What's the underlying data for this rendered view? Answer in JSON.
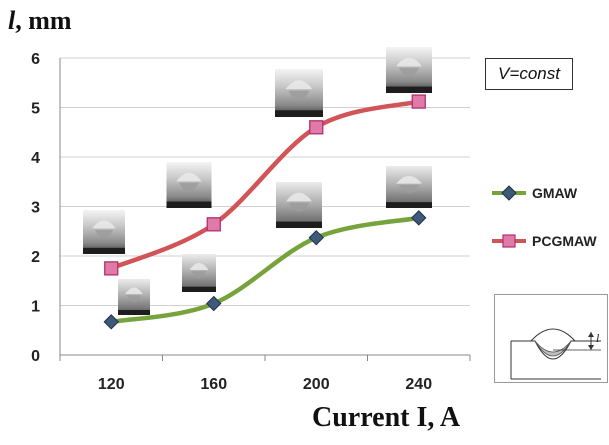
{
  "chart_data": {
    "type": "line",
    "title": "",
    "xlabel": "Current  I, A",
    "ylabel_var": "l",
    "ylabel_unit": ", mm",
    "categories": [
      "120",
      "160",
      "200",
      "240"
    ],
    "ylim": [
      0,
      6
    ],
    "yticks": [
      "0",
      "1",
      "2",
      "3",
      "4",
      "5",
      "6"
    ],
    "grid": true,
    "legend_position": "right",
    "annotation": "V=const",
    "series": [
      {
        "name": "GMAW",
        "values": [
          0.67,
          1.04,
          2.37,
          2.77
        ],
        "color": "#77a33c",
        "marker": "diamond",
        "marker_fill": "#3e5a7a"
      },
      {
        "name": "PCGMAW",
        "values": [
          1.75,
          2.64,
          4.6,
          5.12
        ],
        "color": "#d15456",
        "marker": "square",
        "marker_fill": "#e07aa6"
      }
    ],
    "inset_label": "l"
  }
}
